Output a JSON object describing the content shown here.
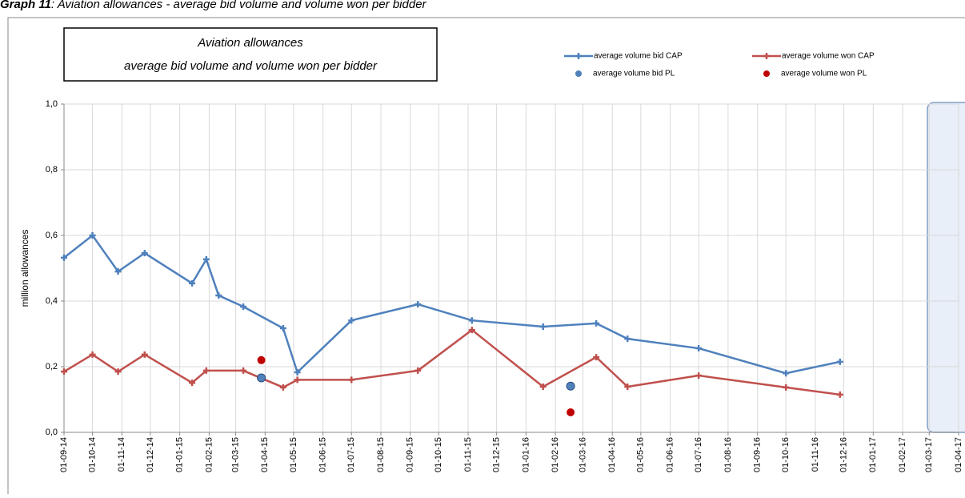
{
  "figure_label": "Graph 11",
  "figure_caption": ": Aviation allowances - average bid volume and volume won per bidder",
  "chart_data": {
    "type": "line",
    "title": [
      "Aviation allowances",
      "average bid volume and volume won per bidder"
    ],
    "ylabel": "million allowances",
    "ylim": [
      0,
      1
    ],
    "yticks": [
      {
        "value": 0,
        "label": "0,0"
      },
      {
        "value": 0.2,
        "label": "0,2"
      },
      {
        "value": 0.4,
        "label": "0,4"
      },
      {
        "value": 0.6,
        "label": "0,6"
      },
      {
        "value": 0.8,
        "label": "0,8"
      },
      {
        "value": 1,
        "label": "1,0"
      }
    ],
    "xlim": [
      "01-09-14",
      "01-04-17"
    ],
    "xticks": [
      "01-09-14",
      "01-10-14",
      "01-11-14",
      "01-12-14",
      "01-01-15",
      "01-02-15",
      "01-03-15",
      "01-04-15",
      "01-05-15",
      "01-06-15",
      "01-07-15",
      "01-08-15",
      "01-09-15",
      "01-10-15",
      "01-11-15",
      "01-12-15",
      "01-01-16",
      "01-02-16",
      "01-03-16",
      "01-04-16",
      "01-05-16",
      "01-06-16",
      "01-07-16",
      "01-08-16",
      "01-09-16",
      "01-10-16",
      "01-11-16",
      "01-12-16",
      "01-01-17",
      "01-02-17",
      "01-03-17",
      "01-04-17"
    ],
    "grid": true,
    "legend": "top-right",
    "series": [
      {
        "name": "average volume bid CAP",
        "color": "#4f81bd",
        "style": "line",
        "x": [
          "01-09-14",
          "01-10-14",
          "28-10-14",
          "25-11-14",
          "14-01-15",
          "29-01-15",
          "11-02-15",
          "09-03-15",
          "20-04-15",
          "05-05-15",
          "01-07-15",
          "09-09-15",
          "05-11-15",
          "19-01-16",
          "15-03-16",
          "17-04-16",
          "01-07-16",
          "01-10-16",
          "27-11-16"
        ],
        "values": [
          0.532,
          0.6,
          0.49,
          0.546,
          0.454,
          0.527,
          0.417,
          0.383,
          0.317,
          0.183,
          0.341,
          0.39,
          0.341,
          0.322,
          0.332,
          0.285,
          0.256,
          0.18,
          0.215
        ]
      },
      {
        "name": "average volume won CAP",
        "color": "#c0504d",
        "style": "line",
        "x": [
          "01-09-14",
          "01-10-14",
          "28-10-14",
          "25-11-14",
          "14-01-15",
          "29-01-15",
          "09-03-15",
          "20-04-15",
          "05-05-15",
          "01-07-15",
          "09-09-15",
          "05-11-15",
          "19-01-16",
          "15-03-16",
          "17-04-16",
          "01-07-16",
          "01-10-16",
          "27-11-16"
        ],
        "values": [
          0.185,
          0.237,
          0.185,
          0.237,
          0.151,
          0.188,
          0.188,
          0.137,
          0.16,
          0.16,
          0.188,
          0.312,
          0.139,
          0.229,
          0.139,
          0.173,
          0.137,
          0.115
        ]
      },
      {
        "name": "average volume bid PL",
        "color": "#4f81bd",
        "style": "dot",
        "x": [
          "28-03-15",
          "17-02-16"
        ],
        "values": [
          0.166,
          0.141
        ]
      },
      {
        "name": "average volume won PL",
        "color": "#c00000",
        "style": "dot",
        "x": [
          "28-03-15",
          "17-02-16"
        ],
        "values": [
          0.22,
          0.061
        ]
      }
    ]
  }
}
